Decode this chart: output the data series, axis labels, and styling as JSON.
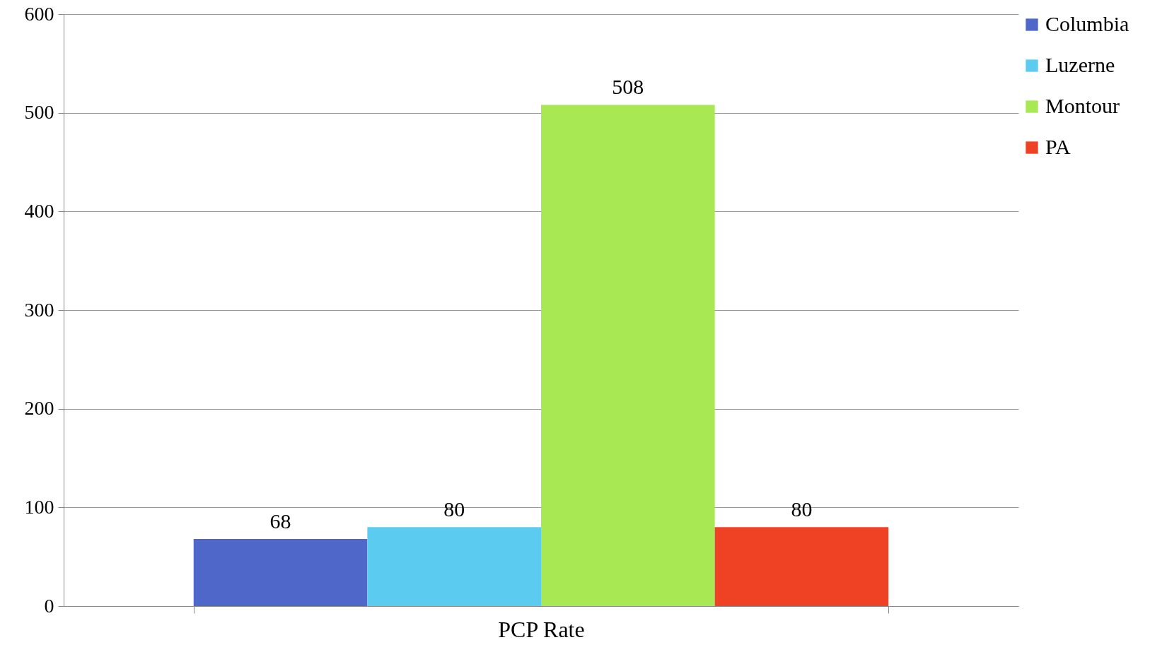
{
  "chart_data": {
    "type": "bar",
    "categories": [
      "PCP Rate"
    ],
    "series": [
      {
        "name": "Columbia",
        "color": "#4f67c8",
        "values": [
          68
        ]
      },
      {
        "name": "Luzerne",
        "color": "#5ccbf0",
        "values": [
          80
        ]
      },
      {
        "name": "Montour",
        "color": "#a8e852",
        "values": [
          508
        ]
      },
      {
        "name": "PA",
        "color": "#ef4124",
        "values": [
          80
        ]
      }
    ],
    "ylim": [
      0,
      600
    ],
    "yticks": [
      0,
      100,
      200,
      300,
      400,
      500,
      600
    ],
    "grid": "y",
    "legend": "right",
    "data_labels": true
  }
}
